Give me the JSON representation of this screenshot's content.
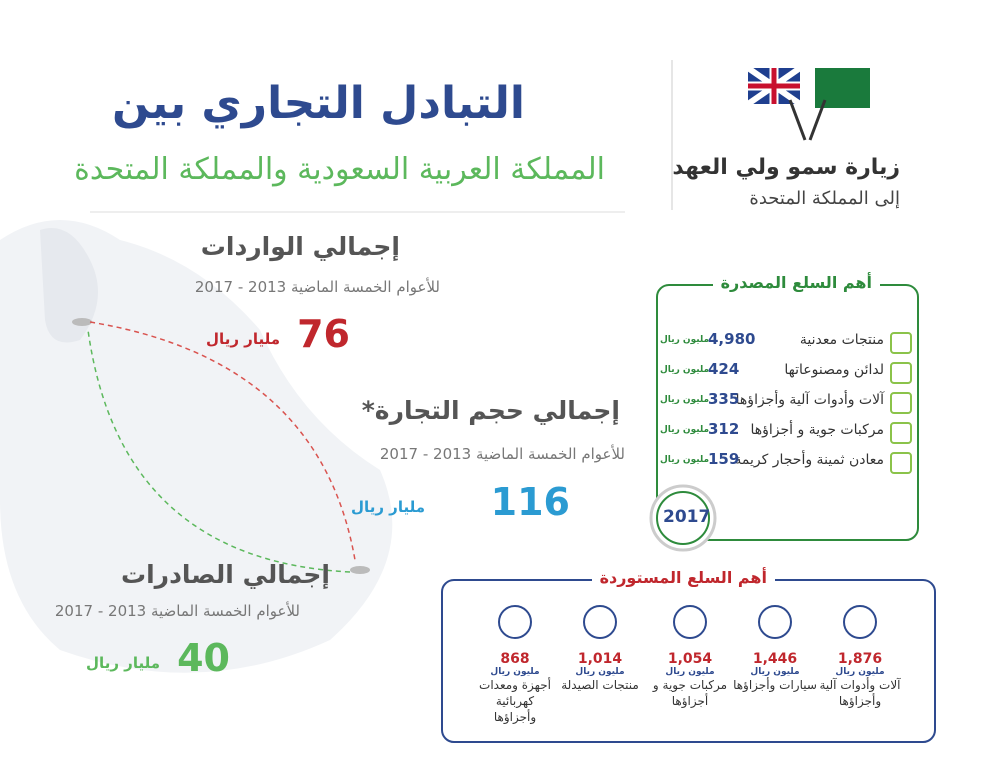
{
  "header": {
    "title": "التبادل التجاري بين",
    "subtitle": "المملكة العربية السعودية والمملكة المتحدة"
  },
  "logo": {
    "line1": "زيارة سمو ولي العهد",
    "line2": "إلى المملكة المتحدة"
  },
  "imports": {
    "title": "إجمالي الواردات",
    "period": "للأعوام الخمسة الماضية 2013 - 2017",
    "value": 76,
    "unit": "مليار ريال"
  },
  "trade": {
    "title": "إجمالي حجم التجارة*",
    "period": "للأعوام الخمسة الماضية 2013 - 2017",
    "value": 116,
    "unit": "مليار ريال"
  },
  "exports": {
    "title": "إجمالي الصادرات",
    "period": "للأعوام الخمسة الماضية 2013 - 2017",
    "value": 40,
    "unit": "مليار ريال"
  },
  "exported_goods": {
    "title": "أهم السلع المصدرة",
    "year": "2017",
    "items": [
      {
        "name": "منتجات معدنية",
        "value": "4,980",
        "unit": "مليون ريال"
      },
      {
        "name": "لدائن ومصنوعاتها",
        "value": "424",
        "unit": "مليون ريال"
      },
      {
        "name": "آلات وأدوات آلية وأجزاؤها",
        "value": "335",
        "unit": "مليون ريال"
      },
      {
        "name": "مركبات جوية و أجزاؤها",
        "value": "312",
        "unit": "مليون ريال"
      },
      {
        "name": "معادن ثمينة وأحجار كريمة",
        "value": "159",
        "unit": "مليون ريال"
      }
    ]
  },
  "imported_goods": {
    "title": "أهم السلع المستوردة",
    "items": [
      {
        "name": "آلات وأدوات آلية وأجزاؤها",
        "value": "1,876",
        "unit": "مليون ريال"
      },
      {
        "name": "سيارات وأجزاؤها",
        "value": "1,446",
        "unit": "مليون ريال"
      },
      {
        "name": "مركبات جوية و أجزاؤها",
        "value": "1,054",
        "unit": "مليون ريال"
      },
      {
        "name": "منتجات الصيدلة",
        "value": "1,014",
        "unit": "مليون ريال"
      },
      {
        "name": "أجهزة ومعدات كهربائية وأجزاؤها",
        "value": "868",
        "unit": "مليون ريال"
      }
    ]
  }
}
